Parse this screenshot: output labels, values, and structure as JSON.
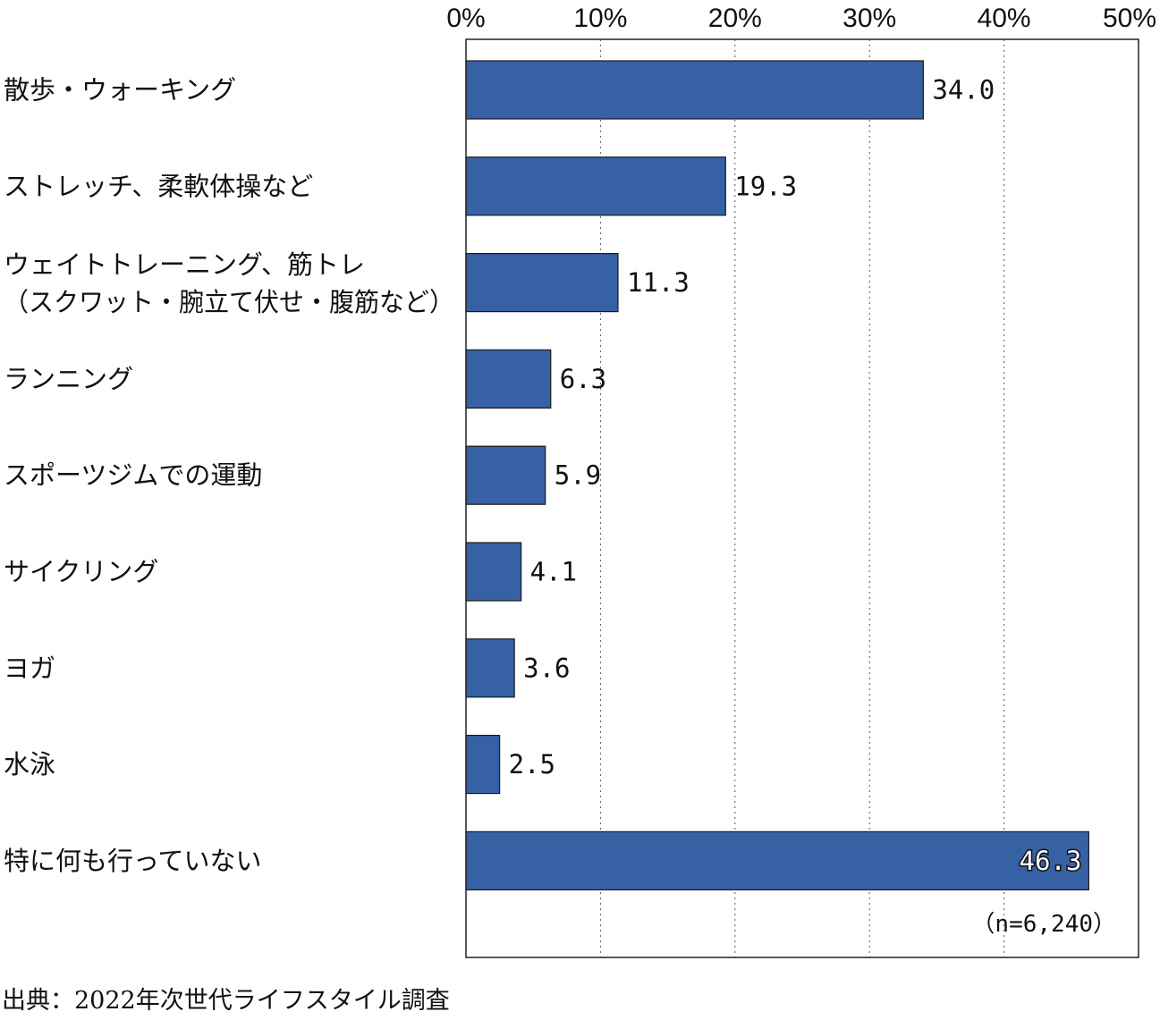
{
  "chart_data": {
    "type": "bar",
    "orientation": "horizontal",
    "categories": [
      [
        "散歩・ウォーキング"
      ],
      [
        "ストレッチ、柔軟体操など"
      ],
      [
        "ウェイトトレーニング、筋トレ",
        "（スクワット・腕立て伏せ・腹筋など）"
      ],
      [
        "ランニング"
      ],
      [
        "スポーツジムでの運動"
      ],
      [
        "サイクリング"
      ],
      [
        "ヨガ"
      ],
      [
        "水泳"
      ],
      [
        "特に何も行っていない"
      ]
    ],
    "values": [
      34.0,
      19.3,
      11.3,
      6.3,
      5.9,
      4.1,
      3.6,
      2.5,
      46.3
    ],
    "value_labels": [
      "34.0",
      "19.3",
      "11.3",
      "6.3",
      "5.9",
      "4.1",
      "3.6",
      "2.5",
      "46.3"
    ],
    "xlim": [
      0,
      50
    ],
    "ticks": [
      0,
      10,
      20,
      30,
      40,
      50
    ],
    "tick_labels": [
      "0%",
      "10%",
      "20%",
      "30%",
      "40%",
      "50%"
    ],
    "grid": "vertical dotted",
    "bar_color": "#3662a5",
    "note": "（n=6,240）",
    "source": "出典：2022年次世代ライフスタイル調査"
  }
}
